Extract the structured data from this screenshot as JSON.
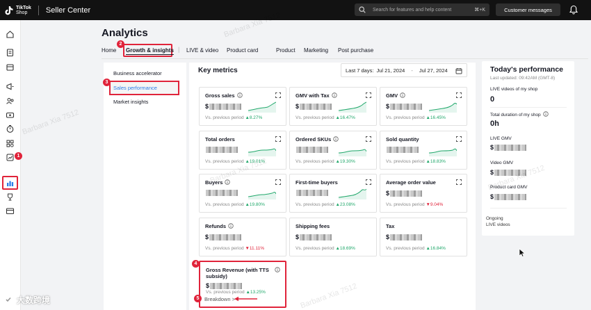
{
  "header": {
    "logo_line1": "TikTok",
    "logo_line2": "Shop",
    "app_title": "Seller Center",
    "search_placeholder": "Search for features and help content",
    "search_shortcut": "⌘+K",
    "messages_label": "Customer messages"
  },
  "page": {
    "title": "Analytics"
  },
  "tabs": [
    {
      "label": "Home"
    },
    {
      "label": "Growth & insights",
      "active": true
    },
    {
      "label": "LIVE & video"
    },
    {
      "label": "Product card"
    },
    {
      "label": "Product"
    },
    {
      "label": "Marketing"
    },
    {
      "label": "Post purchase"
    }
  ],
  "subnav": [
    {
      "label": "Business accelerator"
    },
    {
      "label": "Sales performance",
      "active": true
    },
    {
      "label": "Market insights"
    }
  ],
  "key_metrics": {
    "title": "Key metrics",
    "range_label": "Last 7 days:",
    "start_date": "Jul 21, 2024",
    "end_date": "Jul 27, 2024",
    "compare_label": "Vs. previous period",
    "cards": [
      {
        "label": "Gross sales",
        "prefix": "$",
        "change": "8.27%",
        "dir": "up"
      },
      {
        "label": "GMV with Tax",
        "prefix": "$",
        "change": "16.47%",
        "dir": "up"
      },
      {
        "label": "GMV",
        "prefix": "$",
        "change": "16.45%",
        "dir": "up"
      },
      {
        "label": "Total orders",
        "prefix": "",
        "change": "19.01%",
        "dir": "up"
      },
      {
        "label": "Ordered SKUs",
        "prefix": "",
        "change": "19.30%",
        "dir": "up"
      },
      {
        "label": "Sold quantity",
        "prefix": "",
        "change": "18.83%",
        "dir": "up"
      },
      {
        "label": "Buyers",
        "prefix": "",
        "change": "19.80%",
        "dir": "up"
      },
      {
        "label": "First-time buyers",
        "prefix": "",
        "change": "23.08%",
        "dir": "up"
      },
      {
        "label": "Average order value",
        "prefix": "$",
        "change": "9.04%",
        "dir": "down"
      },
      {
        "label": "Refunds",
        "prefix": "$",
        "change": "11.11%",
        "dir": "down"
      },
      {
        "label": "Shipping fees",
        "prefix": "$",
        "change": "18.69%",
        "dir": "up"
      },
      {
        "label": "Tax",
        "prefix": "$",
        "change": "16.84%",
        "dir": "up"
      },
      {
        "label": "Gross Revenue (with TTS subsidy)",
        "prefix": "$",
        "change": "13.25%",
        "dir": "up"
      }
    ],
    "breakdown_label": "Breakdown >"
  },
  "today": {
    "title": "Today's performance",
    "updated": "Last updated: 09:42AM (GMT-8)",
    "live_videos_label": "LIVE videos of my shop",
    "live_videos_value": "0",
    "duration_label": "Total duration of my shop",
    "duration_value": "0h",
    "live_gmv_label": "LIVE GMV",
    "video_gmv_label": "Video GMV",
    "product_card_gmv_label": "Product card GMV",
    "currency": "$",
    "ongoing_line1": "Ongoing",
    "ongoing_line2": "LIVE videos"
  },
  "callouts": [
    "1",
    "2",
    "3",
    "4",
    "5"
  ],
  "watermark": "Barbara Xia 7512",
  "brand": "大数跨境",
  "colors": {
    "accent_red": "#e0233a",
    "up_green": "#21a86b",
    "topbar": "#121212"
  }
}
